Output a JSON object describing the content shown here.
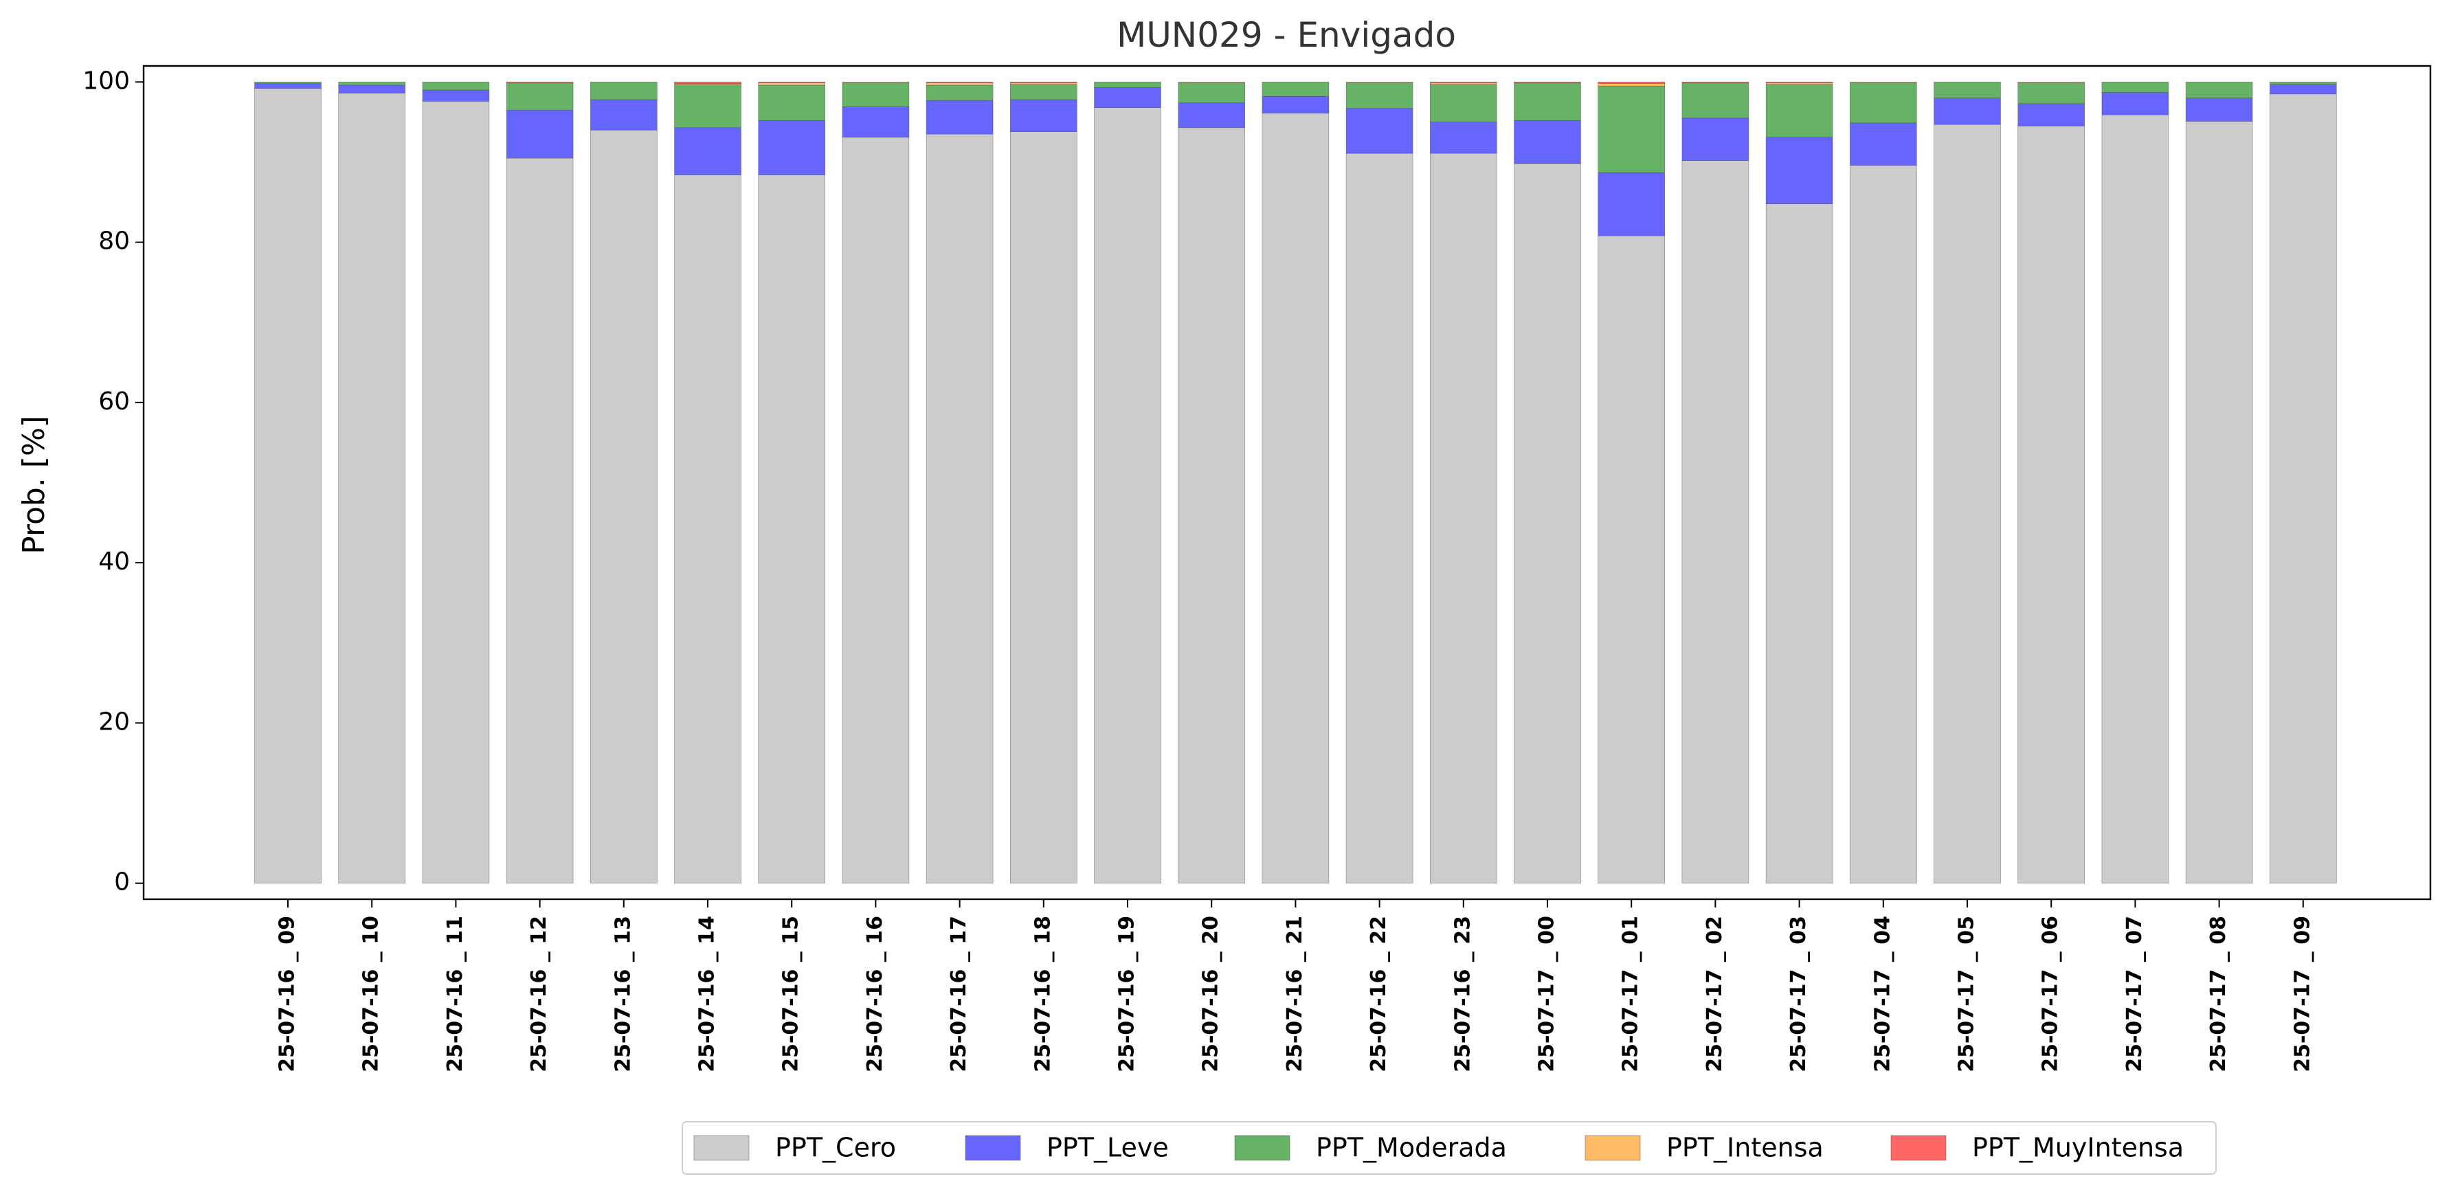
{
  "chart_data": {
    "type": "bar",
    "stacked": true,
    "title": "MUN029 - Envigado",
    "xlabel": "",
    "ylabel": "Prob. [%]",
    "ylim": [
      -2,
      102
    ],
    "yticks": [
      0,
      20,
      40,
      60,
      80,
      100
    ],
    "grid": false,
    "legend_position": "bottom-center",
    "categories": [
      "25-07-16 _ 09",
      "25-07-16 _ 10",
      "25-07-16 _ 11",
      "25-07-16 _ 12",
      "25-07-16 _ 13",
      "25-07-16 _ 14",
      "25-07-16 _ 15",
      "25-07-16 _ 16",
      "25-07-16 _ 17",
      "25-07-16 _ 18",
      "25-07-16 _ 19",
      "25-07-16 _ 20",
      "25-07-16 _ 21",
      "25-07-16 _ 22",
      "25-07-16 _ 23",
      "25-07-17 _ 00",
      "25-07-17 _ 01",
      "25-07-17 _ 02",
      "25-07-17 _ 03",
      "25-07-17 _ 04",
      "25-07-17 _ 05",
      "25-07-17 _ 06",
      "25-07-17 _ 07",
      "25-07-17 _ 08",
      "25-07-17 _ 09"
    ],
    "series": [
      {
        "name": "PPT_Cero",
        "color": "#cccccc",
        "values": [
          99.2,
          98.6,
          97.6,
          90.5,
          94.0,
          88.4,
          88.4,
          93.1,
          93.5,
          93.8,
          96.8,
          94.3,
          96.1,
          91.1,
          91.1,
          89.8,
          80.8,
          90.2,
          84.8,
          89.6,
          94.7,
          94.5,
          95.9,
          95.1,
          98.5
        ]
      },
      {
        "name": "PPT_Leve",
        "color": "#6666ff",
        "values": [
          0.6,
          1.0,
          1.4,
          6.0,
          3.8,
          5.9,
          6.8,
          3.8,
          4.2,
          4.0,
          2.5,
          3.1,
          2.1,
          5.6,
          3.9,
          5.4,
          7.9,
          5.3,
          8.3,
          5.3,
          3.3,
          2.8,
          2.8,
          2.9,
          1.2
        ]
      },
      {
        "name": "PPT_Moderada",
        "color": "#66b266",
        "values": [
          0.2,
          0.4,
          1.0,
          3.3,
          2.2,
          5.4,
          4.4,
          3.0,
          1.9,
          1.9,
          0.7,
          2.5,
          1.8,
          3.2,
          4.7,
          4.6,
          10.8,
          4.3,
          6.6,
          5.0,
          2.0,
          2.6,
          1.3,
          2.0,
          0.3
        ]
      },
      {
        "name": "PPT_Intensa",
        "color": "#ffbb66",
        "values": [
          0.0,
          0.0,
          0.0,
          0.1,
          0.0,
          0.1,
          0.3,
          0.1,
          0.3,
          0.2,
          0.0,
          0.1,
          0.0,
          0.1,
          0.2,
          0.1,
          0.3,
          0.1,
          0.2,
          0.1,
          0.0,
          0.1,
          0.0,
          0.0,
          0.0
        ]
      },
      {
        "name": "PPT_MuyIntensa",
        "color": "#ff6666",
        "values": [
          0.0,
          0.0,
          0.0,
          0.1,
          0.0,
          0.2,
          0.1,
          0.0,
          0.1,
          0.1,
          0.0,
          0.0,
          0.0,
          0.0,
          0.1,
          0.1,
          0.2,
          0.1,
          0.1,
          0.0,
          0.0,
          0.0,
          0.0,
          0.0,
          0.0
        ]
      }
    ]
  }
}
